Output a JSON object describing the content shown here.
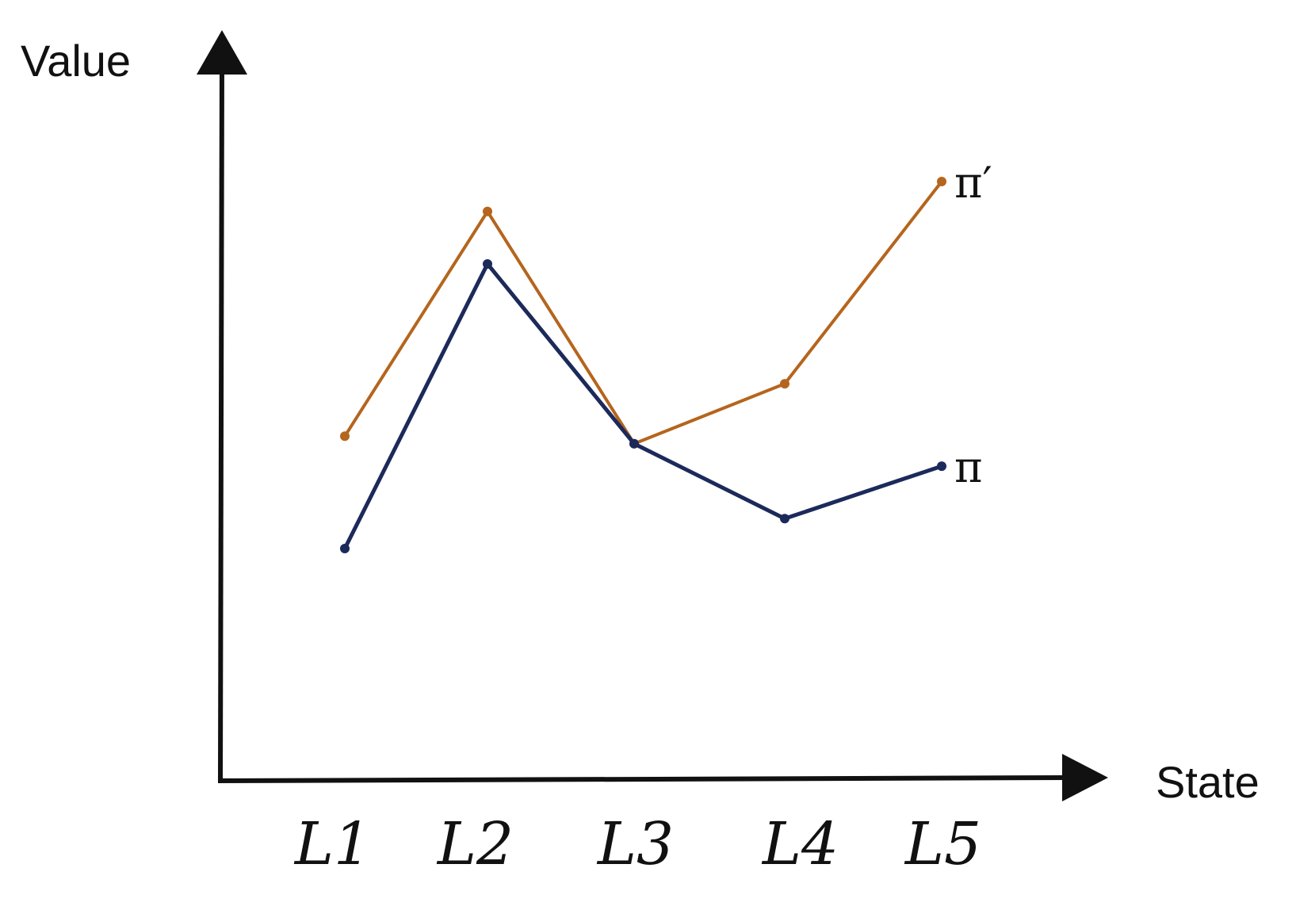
{
  "chart_data": {
    "type": "line",
    "xlabel": "State",
    "ylabel": "Value",
    "categories": [
      "L1",
      "L2",
      "L3",
      "L4",
      "L5"
    ],
    "ylim": [
      0,
      10
    ],
    "grid": false,
    "legend": "inline at line ends",
    "series": [
      {
        "name": "π′",
        "color": "#b5651d",
        "values": [
          4.6,
          7.6,
          4.5,
          5.3,
          8.0
        ]
      },
      {
        "name": "π",
        "color": "#1c2a5a",
        "values": [
          3.1,
          6.9,
          4.5,
          3.5,
          4.2
        ]
      }
    ]
  }
}
